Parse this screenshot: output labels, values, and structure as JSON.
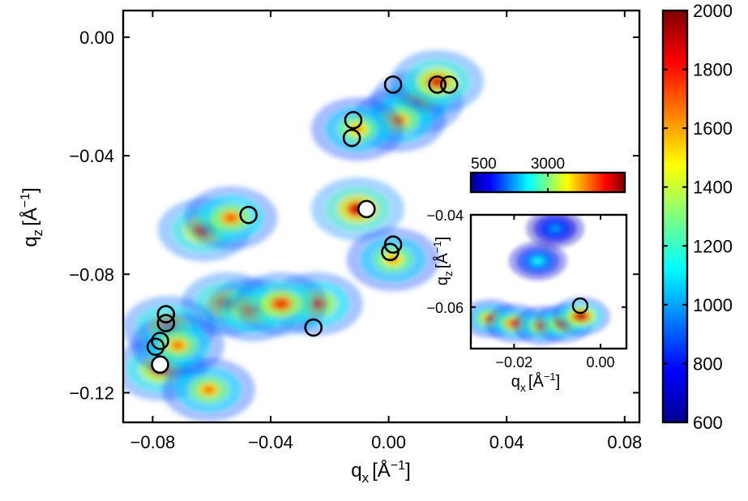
{
  "chart_data": [
    {
      "type": "heatmap",
      "subtype": "contour",
      "xlabel": "q",
      "xlabel_sub": "x",
      "xlabel_unit": "[Å",
      "xlabel_unit_sup": "−1",
      "xlabel_unit_end": "]",
      "ylabel": "q",
      "ylabel_sub": "z",
      "ylabel_unit": "[Å",
      "ylabel_unit_sup": "−1",
      "ylabel_unit_end": "]",
      "xlim": [
        -0.09,
        0.085
      ],
      "ylim": [
        -0.13,
        0.009
      ],
      "xticks": [
        -0.08,
        -0.04,
        0.0,
        0.04,
        0.08
      ],
      "xtick_labels": [
        "−0.08",
        "−0.04",
        "0.00",
        "0.04",
        "0.08"
      ],
      "yticks": [
        0.0,
        -0.04,
        -0.08,
        -0.12
      ],
      "ytick_labels": [
        "0.00",
        "−0.04",
        "−0.08",
        "−0.12"
      ],
      "colorscale": "jet",
      "colorbar": {
        "range": [
          600,
          2000
        ],
        "ticks": [
          2000,
          1800,
          1600,
          1400,
          1200,
          1000,
          800,
          600
        ],
        "tick_labels": [
          "2000",
          "1800",
          "1600",
          "1400",
          "1200",
          "1000",
          "800",
          "600"
        ],
        "orientation": "vertical",
        "placement": "right"
      },
      "intensity_blobs": [
        {
          "x": -0.0105,
          "y": -0.058,
          "peak": 2000
        },
        {
          "x": -0.0245,
          "y": -0.09,
          "peak": 1800
        },
        {
          "x": -0.0625,
          "y": -0.065,
          "peak": 1900
        },
        {
          "x": -0.0535,
          "y": -0.061,
          "peak": 1750
        },
        {
          "x": -0.0545,
          "y": -0.09,
          "peak": 1900
        },
        {
          "x": -0.046,
          "y": -0.092,
          "peak": 1800
        },
        {
          "x": -0.0365,
          "y": -0.09,
          "peak": 1850
        },
        {
          "x": -0.0745,
          "y": -0.098,
          "peak": 1850
        },
        {
          "x": -0.0775,
          "y": -0.112,
          "peak": 1850
        },
        {
          "x": -0.061,
          "y": -0.119,
          "peak": 1700
        },
        {
          "x": 0.0095,
          "y": -0.022,
          "peak": 1750
        },
        {
          "x": 0.0035,
          "y": -0.028,
          "peak": 1700
        },
        {
          "x": 0.0165,
          "y": -0.015,
          "peak": 1900
        },
        {
          "x": -0.0105,
          "y": -0.031,
          "peak": 1650
        },
        {
          "x": 0.0015,
          "y": -0.075,
          "peak": 1650
        },
        {
          "x": -0.0715,
          "y": -0.104,
          "peak": 1700
        }
      ],
      "markers": [
        {
          "x": 0.0015,
          "y": -0.016,
          "fill": "none"
        },
        {
          "x": 0.0165,
          "y": -0.016,
          "fill": "none"
        },
        {
          "x": 0.0205,
          "y": -0.016,
          "fill": "none"
        },
        {
          "x": -0.012,
          "y": -0.028,
          "fill": "none"
        },
        {
          "x": -0.0125,
          "y": -0.034,
          "fill": "none"
        },
        {
          "x": -0.0075,
          "y": -0.058,
          "fill": "white"
        },
        {
          "x": -0.0475,
          "y": -0.06,
          "fill": "none"
        },
        {
          "x": 0.0015,
          "y": -0.07,
          "fill": "none"
        },
        {
          "x": 0.0005,
          "y": -0.0725,
          "fill": "none"
        },
        {
          "x": -0.0755,
          "y": -0.0935,
          "fill": "none"
        },
        {
          "x": -0.0755,
          "y": -0.0965,
          "fill": "none"
        },
        {
          "x": -0.0775,
          "y": -0.1025,
          "fill": "none"
        },
        {
          "x": -0.079,
          "y": -0.1045,
          "fill": "none"
        },
        {
          "x": -0.0775,
          "y": -0.1105,
          "fill": "white"
        },
        {
          "x": -0.0255,
          "y": -0.098,
          "fill": "none"
        }
      ]
    },
    {
      "type": "heatmap",
      "subtype": "contour",
      "placement": "inset-right",
      "xlabel": "q",
      "xlabel_sub": "x",
      "xlabel_unit": "[Å",
      "xlabel_unit_sup": "−1",
      "xlabel_unit_end": "]",
      "ylabel": "q",
      "ylabel_sub": "z",
      "ylabel_unit": "[Å",
      "ylabel_unit_sup": "−1",
      "ylabel_unit_end": "]",
      "xlim": [
        -0.03,
        0.006
      ],
      "ylim": [
        -0.069,
        -0.04
      ],
      "xticks": [
        -0.02,
        0.0
      ],
      "xtick_labels": [
        "−0.02",
        "0.00"
      ],
      "yticks": [
        -0.04,
        -0.06
      ],
      "ytick_labels": [
        "−0.04",
        "−0.06"
      ],
      "colorscale": "jet",
      "colorbar": {
        "range": [
          500,
          3000
        ],
        "ticks": [
          500,
          3000
        ],
        "tick_labels": [
          "500",
          "3000"
        ],
        "orientation": "horizontal",
        "placement": "above"
      },
      "intensity_blobs": [
        {
          "x": -0.0255,
          "y": -0.0625,
          "peak": 2600
        },
        {
          "x": -0.02,
          "y": -0.0635,
          "peak": 2700
        },
        {
          "x": -0.0135,
          "y": -0.064,
          "peak": 2600
        },
        {
          "x": -0.0085,
          "y": -0.0635,
          "peak": 2800
        },
        {
          "x": -0.0045,
          "y": -0.062,
          "peak": 3000
        },
        {
          "x": -0.0145,
          "y": -0.05,
          "peak": 1500
        },
        {
          "x": -0.0105,
          "y": -0.043,
          "peak": 1200
        }
      ],
      "markers": [
        {
          "x": -0.0047,
          "y": -0.0597,
          "fill": "none"
        }
      ]
    }
  ]
}
